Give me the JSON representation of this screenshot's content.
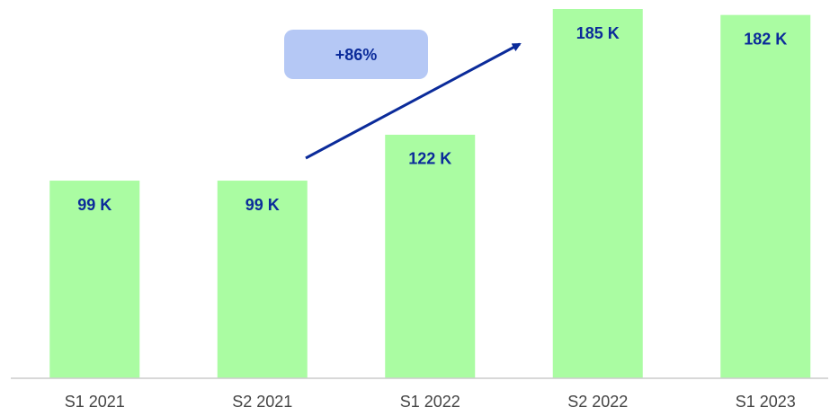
{
  "chart_data": {
    "type": "bar",
    "categories": [
      "S1 2021",
      "S2 2021",
      "S1 2022",
      "S2 2022",
      "S1 2023"
    ],
    "values": [
      99,
      99,
      122,
      185,
      182
    ],
    "value_labels": [
      "99 K",
      "99 K",
      "122 K",
      "185 K",
      "182 K"
    ],
    "color": "#aafca2",
    "ylim": [
      0,
      185
    ],
    "annotation": "+86%"
  }
}
